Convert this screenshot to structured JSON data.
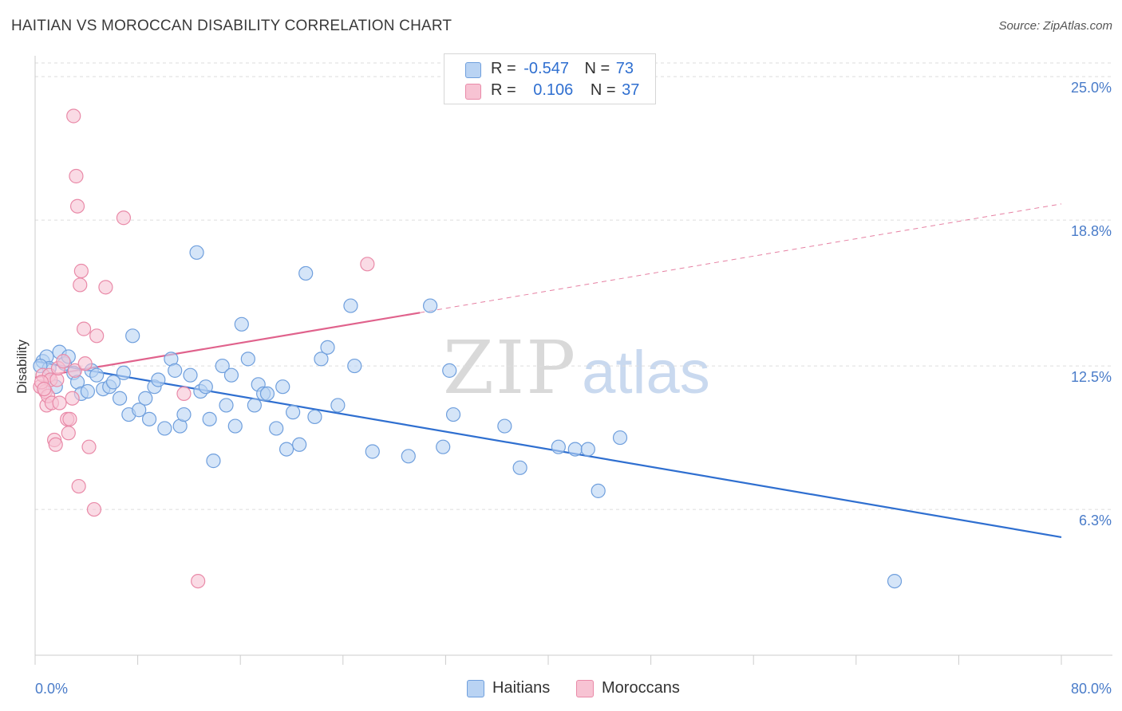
{
  "title": "HAITIAN VS MOROCCAN DISABILITY CORRELATION CHART",
  "source": "Source: ZipAtlas.com",
  "watermark": {
    "zip": "ZIP",
    "atlas": "atlas"
  },
  "colors": {
    "haitians_fill": "#b9d3f3",
    "haitians_stroke": "#6f9fdd",
    "haitians_line": "#2f6fd0",
    "moroccans_fill": "#f7c3d3",
    "moroccans_stroke": "#e98aa8",
    "moroccans_line": "#e0628c",
    "tick_label": "#4a7cc9",
    "grid": "#dddddd"
  },
  "legend": {
    "rows": [
      {
        "r_label": "R =",
        "r_value": "-0.547",
        "n_label": "N =",
        "n_value": "73"
      },
      {
        "r_label": "R =",
        "r_value": "0.106",
        "n_label": "N =",
        "n_value": "37"
      }
    ]
  },
  "bottom_legend": [
    "Haitians",
    "Moroccans"
  ],
  "chart_data": {
    "type": "scatter",
    "title": "HAITIAN VS MOROCCAN DISABILITY CORRELATION CHART",
    "xlabel": "",
    "ylabel": "Disability",
    "xlim": [
      0,
      80
    ],
    "ylim": [
      0,
      25.9
    ],
    "x_tick_labels": [
      "0.0%",
      "80.0%"
    ],
    "y_ticks": [
      6.3,
      12.5,
      18.8,
      25.0
    ],
    "y_tick_labels": [
      "6.3%",
      "12.5%",
      "18.8%",
      "25.0%"
    ],
    "grid": "horizontal dashed",
    "legend_placement": "top-center",
    "series": [
      {
        "name": "Haitians",
        "r": -0.547,
        "n": 73,
        "trend": {
          "x": [
            0,
            80
          ],
          "y": [
            12.7,
            5.1
          ]
        },
        "points": [
          [
            0.6,
            12.7
          ],
          [
            0.9,
            12.9
          ],
          [
            1.1,
            12.4
          ],
          [
            1.6,
            11.6
          ],
          [
            1.9,
            13.1
          ],
          [
            2.3,
            12.6
          ],
          [
            2.6,
            12.9
          ],
          [
            3.0,
            12.2
          ],
          [
            3.3,
            11.8
          ],
          [
            3.6,
            11.3
          ],
          [
            4.1,
            11.4
          ],
          [
            4.4,
            12.3
          ],
          [
            4.8,
            12.1
          ],
          [
            5.3,
            11.5
          ],
          [
            5.8,
            11.6
          ],
          [
            6.1,
            11.8
          ],
          [
            6.6,
            11.1
          ],
          [
            6.9,
            12.2
          ],
          [
            7.3,
            10.4
          ],
          [
            7.6,
            13.8
          ],
          [
            8.1,
            10.6
          ],
          [
            8.6,
            11.1
          ],
          [
            8.9,
            10.2
          ],
          [
            9.3,
            11.6
          ],
          [
            9.6,
            11.9
          ],
          [
            10.1,
            9.8
          ],
          [
            10.6,
            12.8
          ],
          [
            10.9,
            12.3
          ],
          [
            11.3,
            9.9
          ],
          [
            11.6,
            10.4
          ],
          [
            12.1,
            12.1
          ],
          [
            12.6,
            17.4
          ],
          [
            12.9,
            11.4
          ],
          [
            13.3,
            11.6
          ],
          [
            13.6,
            10.2
          ],
          [
            13.9,
            8.4
          ],
          [
            14.6,
            12.5
          ],
          [
            14.9,
            10.8
          ],
          [
            15.3,
            12.1
          ],
          [
            15.6,
            9.9
          ],
          [
            16.1,
            14.3
          ],
          [
            16.6,
            12.8
          ],
          [
            17.1,
            10.8
          ],
          [
            17.4,
            11.7
          ],
          [
            17.8,
            11.3
          ],
          [
            18.1,
            11.3
          ],
          [
            18.8,
            9.8
          ],
          [
            19.3,
            11.6
          ],
          [
            19.6,
            8.9
          ],
          [
            20.1,
            10.5
          ],
          [
            20.6,
            9.1
          ],
          [
            21.1,
            16.5
          ],
          [
            21.8,
            10.3
          ],
          [
            22.3,
            12.8
          ],
          [
            22.8,
            13.3
          ],
          [
            23.6,
            10.8
          ],
          [
            24.6,
            15.1
          ],
          [
            24.9,
            12.5
          ],
          [
            26.3,
            8.8
          ],
          [
            29.1,
            8.6
          ],
          [
            30.8,
            15.1
          ],
          [
            31.8,
            9.0
          ],
          [
            32.3,
            12.3
          ],
          [
            32.6,
            10.4
          ],
          [
            36.6,
            9.9
          ],
          [
            37.8,
            8.1
          ],
          [
            40.8,
            9.0
          ],
          [
            42.1,
            8.9
          ],
          [
            43.1,
            8.9
          ],
          [
            43.9,
            7.1
          ],
          [
            45.6,
            9.4
          ],
          [
            67.0,
            3.2
          ],
          [
            0.4,
            12.5
          ]
        ]
      },
      {
        "name": "Moroccans",
        "r": 0.106,
        "n": 37,
        "trend": {
          "x": [
            0,
            30
          ],
          "y": [
            12.0,
            14.8
          ],
          "dashed_extension_to": [
            80,
            19.5
          ]
        },
        "points": [
          [
            0.4,
            11.6
          ],
          [
            0.6,
            12.1
          ],
          [
            0.8,
            11.4
          ],
          [
            0.9,
            10.8
          ],
          [
            1.0,
            11.2
          ],
          [
            1.1,
            12.1
          ],
          [
            1.2,
            11.9
          ],
          [
            1.3,
            10.9
          ],
          [
            1.5,
            9.3
          ],
          [
            1.6,
            9.1
          ],
          [
            1.7,
            11.9
          ],
          [
            1.8,
            12.4
          ],
          [
            1.9,
            10.9
          ],
          [
            2.2,
            12.7
          ],
          [
            2.5,
            10.2
          ],
          [
            2.6,
            9.6
          ],
          [
            2.7,
            10.2
          ],
          [
            2.9,
            11.1
          ],
          [
            3.0,
            23.3
          ],
          [
            3.1,
            12.3
          ],
          [
            3.2,
            20.7
          ],
          [
            3.3,
            19.4
          ],
          [
            3.4,
            7.3
          ],
          [
            3.5,
            16.0
          ],
          [
            3.6,
            16.6
          ],
          [
            3.8,
            14.1
          ],
          [
            3.9,
            12.6
          ],
          [
            4.2,
            9.0
          ],
          [
            4.6,
            6.3
          ],
          [
            4.8,
            13.8
          ],
          [
            5.5,
            15.9
          ],
          [
            6.9,
            18.9
          ],
          [
            11.6,
            11.3
          ],
          [
            12.7,
            3.2
          ],
          [
            25.9,
            16.9
          ],
          [
            0.5,
            11.8
          ],
          [
            0.7,
            11.5
          ]
        ]
      }
    ]
  }
}
